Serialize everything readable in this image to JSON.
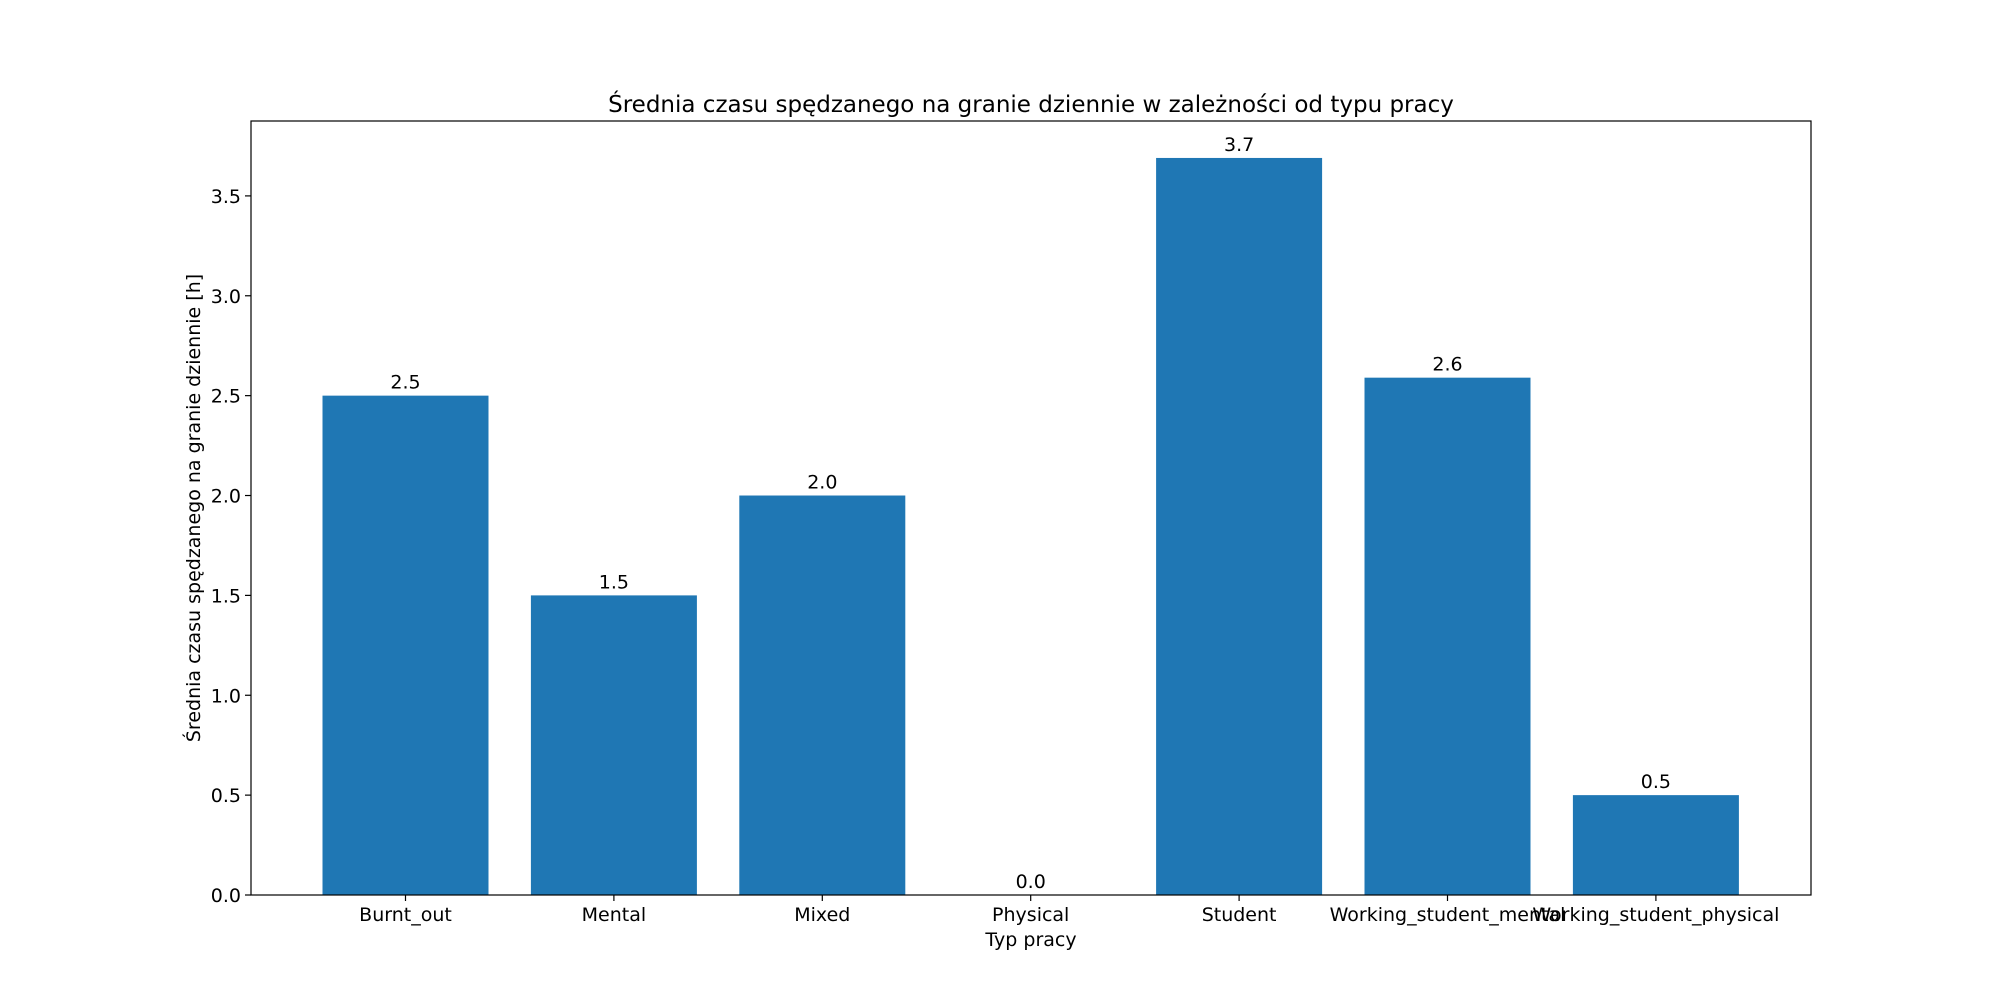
{
  "chart_data": {
    "type": "bar",
    "title": "Średnia czasu spędzanego na granie dziennie w zależności od typu pracy",
    "xlabel": "Typ pracy",
    "ylabel": "Średnia czasu spędzanego na granie dziennie [h]",
    "categories": [
      "Burnt_out",
      "Mental",
      "Mixed",
      "Physical",
      "Student",
      "Working_student_mental",
      "Working_student_physical"
    ],
    "values": [
      2.5,
      1.5,
      2.0,
      0.0,
      3.69,
      2.59,
      0.5
    ],
    "value_labels": [
      "2.5",
      "1.5",
      "2.0",
      "0.0",
      "3.7",
      "2.6",
      "0.5"
    ],
    "ylim": [
      0,
      3.875
    ],
    "yticks": [
      0.0,
      0.5,
      1.0,
      1.5,
      2.0,
      2.5,
      3.0,
      3.5
    ],
    "ytick_labels": [
      "0.0",
      "0.5",
      "1.0",
      "1.5",
      "2.0",
      "2.5",
      "3.0",
      "3.5"
    ],
    "grid": false,
    "legend": "none",
    "bar_color": "#1f77b4"
  }
}
